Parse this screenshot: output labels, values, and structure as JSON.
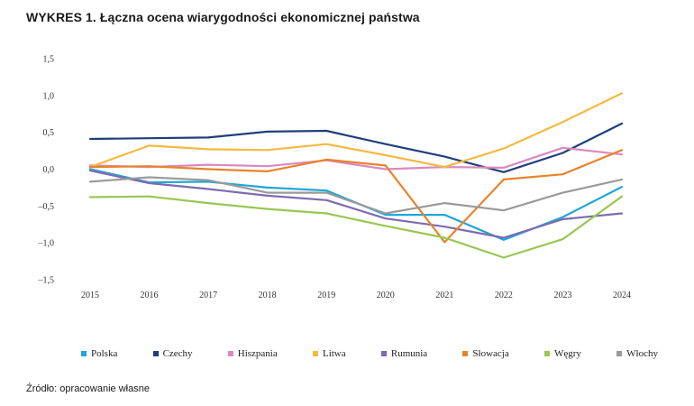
{
  "chart_data": {
    "type": "line",
    "title": "WYKRES 1. Łączna ocena wiarygodności ekonomicznej państwa",
    "xlabel": "",
    "ylabel": "",
    "ylim": [
      -1.5,
      1.5
    ],
    "yticks": [
      1.5,
      1.0,
      0.5,
      0.0,
      -0.5,
      -1.0,
      -1.5
    ],
    "ytick_labels": [
      "1,5",
      "1,0",
      "0,5",
      "0,0",
      "–0,5",
      "–1,0",
      "–1,5"
    ],
    "categories": [
      "2015",
      "2016",
      "2017",
      "2018",
      "2019",
      "2020",
      "2021",
      "2022",
      "2023",
      "2024"
    ],
    "series": [
      {
        "name": "Polska",
        "color": "#1ea6d9",
        "values": [
          0.0,
          -0.18,
          -0.17,
          -0.25,
          -0.29,
          -0.62,
          -0.62,
          -0.96,
          -0.65,
          -0.24
        ]
      },
      {
        "name": "Czechy",
        "color": "#1f3f7a",
        "values": [
          0.41,
          0.42,
          0.43,
          0.51,
          0.52,
          0.34,
          0.17,
          -0.04,
          0.22,
          0.62
        ]
      },
      {
        "name": "Hiszpania",
        "color": "#d98ac0",
        "values": [
          0.05,
          0.03,
          0.06,
          0.04,
          0.12,
          0.0,
          0.03,
          0.02,
          0.29,
          0.2
        ]
      },
      {
        "name": "Litwa",
        "color": "#f5b942",
        "values": [
          0.03,
          0.32,
          0.27,
          0.26,
          0.34,
          0.19,
          0.03,
          0.28,
          0.64,
          1.03
        ]
      },
      {
        "name": "Rumunia",
        "color": "#7e6bae",
        "values": [
          -0.02,
          -0.19,
          -0.27,
          -0.36,
          -0.42,
          -0.67,
          -0.78,
          -0.93,
          -0.68,
          -0.6
        ]
      },
      {
        "name": "Słowacja",
        "color": "#e8832a",
        "values": [
          0.03,
          0.04,
          0.0,
          -0.03,
          0.13,
          0.05,
          -0.99,
          -0.14,
          -0.07,
          0.26
        ]
      },
      {
        "name": "Węgry",
        "color": "#99c752",
        "values": [
          -0.38,
          -0.37,
          -0.46,
          -0.54,
          -0.6,
          -0.77,
          -0.93,
          -1.2,
          -0.95,
          -0.37
        ]
      },
      {
        "name": "Włochy",
        "color": "#9a9a9a",
        "values": [
          -0.17,
          -0.11,
          -0.15,
          -0.32,
          -0.32,
          -0.6,
          -0.46,
          -0.56,
          -0.32,
          -0.14
        ]
      }
    ],
    "legend_position": "bottom",
    "grid": false
  },
  "source_text": "Źródło: opracowanie własne"
}
